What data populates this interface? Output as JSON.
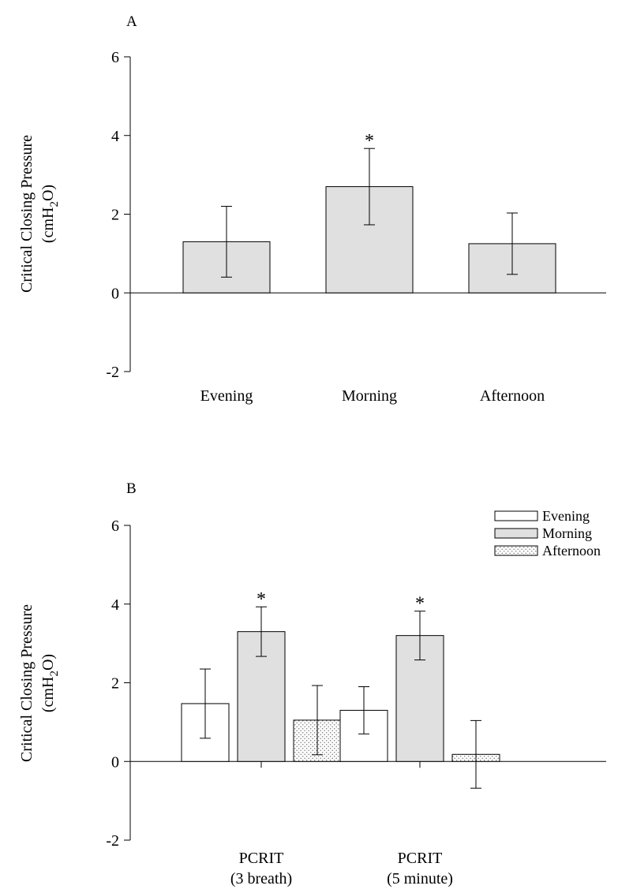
{
  "chart_data": [
    {
      "type": "bar",
      "panel_label": "A",
      "categories": [
        "Evening",
        "Morning",
        "Afternoon"
      ],
      "series": [
        {
          "values": [
            1.3,
            2.7,
            1.25
          ],
          "error": [
            0.9,
            0.97,
            0.78
          ]
        }
      ],
      "significance": [
        "",
        "*",
        ""
      ],
      "ylabel_line1": "Critical Closing Pressure",
      "ylabel_line2_pre": "(cmH",
      "ylabel_sub": "2",
      "ylabel_line2_post": "O)",
      "ylim": [
        -2,
        6
      ],
      "yticks": [
        -2,
        0,
        2,
        4,
        6
      ],
      "colors": {
        "fill": "#e0e0e0",
        "stroke": "#000000"
      }
    },
    {
      "type": "bar",
      "panel_label": "B",
      "categories": [
        {
          "line1": "PCRIT",
          "line2": "(3 breath)"
        },
        {
          "line1": "PCRIT",
          "line2": "(5 minute)"
        }
      ],
      "series": [
        {
          "name": "Evening",
          "values": [
            1.47,
            1.3
          ],
          "error": [
            0.88,
            0.6
          ],
          "fill": "white"
        },
        {
          "name": "Morning",
          "values": [
            3.3,
            3.2
          ],
          "error": [
            0.63,
            0.62
          ],
          "fill": "gray"
        },
        {
          "name": "Afternoon",
          "values": [
            1.05,
            0.18
          ],
          "error": [
            0.88,
            0.86
          ],
          "fill": "dots"
        }
      ],
      "significance": [
        [
          "",
          "*",
          ""
        ],
        [
          "",
          "*",
          ""
        ]
      ],
      "ylabel_line1": "Critical Closing Pressure",
      "ylabel_line2_pre": "(cmH",
      "ylabel_sub": "2",
      "ylabel_line2_post": "O)",
      "ylim": [
        -2,
        6
      ],
      "yticks": [
        -2,
        0,
        2,
        4,
        6
      ],
      "legend_position": "top-right",
      "colors": {
        "gray": "#e0e0e0",
        "white": "#ffffff",
        "dots": "#9a9a9a",
        "stroke": "#000000"
      }
    }
  ]
}
